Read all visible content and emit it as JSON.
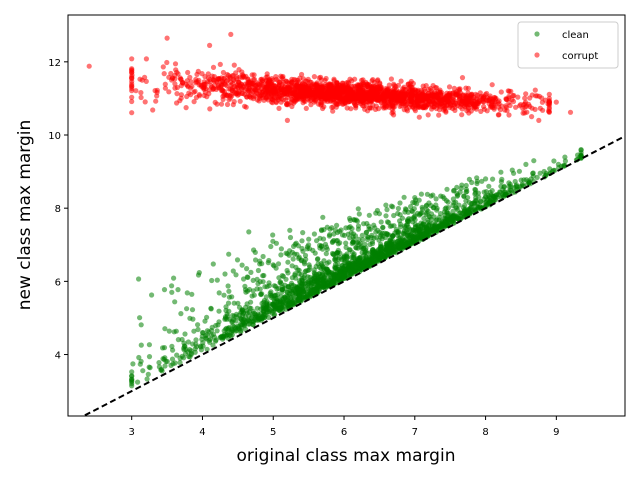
{
  "chart_data": {
    "type": "scatter",
    "xlabel": "original class max margin",
    "ylabel": "new class max margin",
    "xlim": [
      2.1,
      9.97
    ],
    "ylim": [
      2.32,
      13.28
    ],
    "xticks": [
      3,
      4,
      5,
      6,
      7,
      8,
      9
    ],
    "yticks": [
      4,
      6,
      8,
      10,
      12
    ],
    "grid": false,
    "legend_position": "top-right",
    "reference_line": {
      "style": "dashed",
      "color": "#000000",
      "x": [
        2.1,
        9.97
      ],
      "y": [
        2.1,
        9.97
      ]
    },
    "series": [
      {
        "name": "clean",
        "color": "#008000",
        "opacity": 0.55,
        "relation": "y is above y = x; the gap widens with x",
        "x_range": [
          3.0,
          9.35
        ],
        "approx_points": 2000,
        "samples": [
          {
            "x": 3.1,
            "y": 3.92
          },
          {
            "x": 3.25,
            "y": 4.27
          },
          {
            "x": 3.6,
            "y": 4.62
          },
          {
            "x": 4.0,
            "y": 4.6
          },
          {
            "x": 4.5,
            "y": 5.4
          },
          {
            "x": 5.0,
            "y": 6.45
          },
          {
            "x": 5.5,
            "y": 7.0
          },
          {
            "x": 5.7,
            "y": 7.75
          },
          {
            "x": 6.5,
            "y": 7.85
          },
          {
            "x": 7.0,
            "y": 8.15
          },
          {
            "x": 8.0,
            "y": 8.8
          },
          {
            "x": 9.3,
            "y": 9.45
          }
        ]
      },
      {
        "name": "corrupt",
        "color": "#ff0000",
        "opacity": 0.55,
        "relation": "centre line about y = 11.4 at x = 3.5, falling to y = 10.85 at x = 8.5",
        "x_range": [
          2.4,
          9.2
        ],
        "y_range": [
          10.4,
          12.75
        ],
        "approx_points": 2000,
        "samples": [
          {
            "x": 2.4,
            "y": 11.88
          },
          {
            "x": 3.5,
            "y": 12.65
          },
          {
            "x": 4.1,
            "y": 12.45
          },
          {
            "x": 4.4,
            "y": 12.75
          },
          {
            "x": 5.2,
            "y": 10.4
          },
          {
            "x": 6.7,
            "y": 10.55
          },
          {
            "x": 8.7,
            "y": 10.7
          },
          {
            "x": 9.0,
            "y": 10.9
          },
          {
            "x": 9.2,
            "y": 10.62
          }
        ]
      }
    ]
  }
}
